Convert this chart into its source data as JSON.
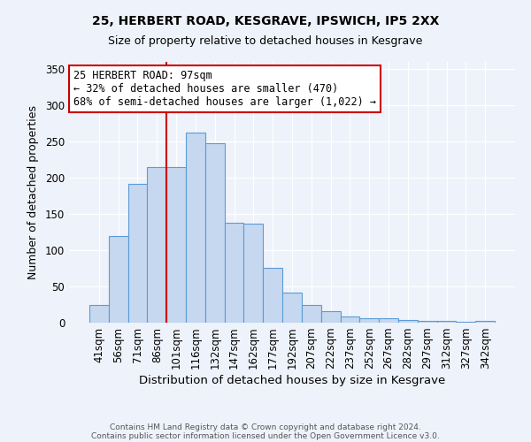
{
  "title1": "25, HERBERT ROAD, KESGRAVE, IPSWICH, IP5 2XX",
  "title2": "Size of property relative to detached houses in Kesgrave",
  "xlabel": "Distribution of detached houses by size in Kesgrave",
  "ylabel": "Number of detached properties",
  "bar_labels": [
    "41sqm",
    "56sqm",
    "71sqm",
    "86sqm",
    "101sqm",
    "116sqm",
    "132sqm",
    "147sqm",
    "162sqm",
    "177sqm",
    "192sqm",
    "207sqm",
    "222sqm",
    "237sqm",
    "252sqm",
    "267sqm",
    "282sqm",
    "297sqm",
    "312sqm",
    "327sqm",
    "342sqm"
  ],
  "bar_values": [
    25,
    120,
    192,
    215,
    215,
    262,
    248,
    138,
    137,
    76,
    41,
    25,
    16,
    8,
    6,
    6,
    4,
    3,
    2,
    1,
    3
  ],
  "bar_color": "#c5d8f0",
  "bar_edge_color": "#5b9bd5",
  "vline_color": "#cc0000",
  "vline_index": 4,
  "annotation_title": "25 HERBERT ROAD: 97sqm",
  "annotation_line1": "← 32% of detached houses are smaller (470)",
  "annotation_line2": "68% of semi-detached houses are larger (1,022) →",
  "annotation_box_color": "#ffffff",
  "annotation_box_edge": "#cc0000",
  "ylim": [
    0,
    360
  ],
  "yticks": [
    0,
    50,
    100,
    150,
    200,
    250,
    300,
    350
  ],
  "footer1": "Contains HM Land Registry data © Crown copyright and database right 2024.",
  "footer2": "Contains public sector information licensed under the Open Government Licence v3.0.",
  "bg_color": "#eef2fa"
}
